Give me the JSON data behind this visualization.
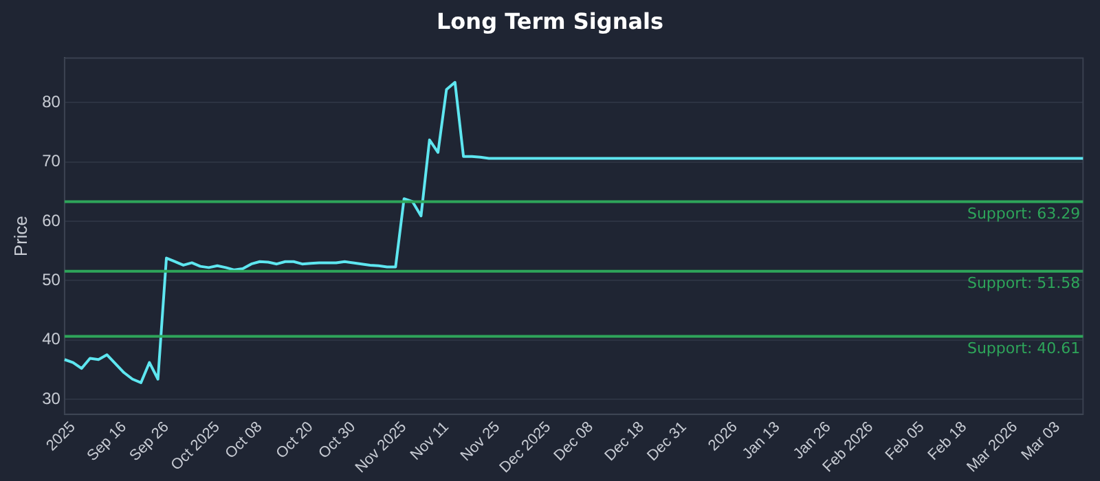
{
  "chart_data": {
    "type": "line",
    "title": "Long Term Signals",
    "ylabel": "Price",
    "categories": [
      null,
      "2025",
      null,
      null,
      null,
      null,
      null,
      "Sep 16",
      null,
      null,
      null,
      null,
      "Sep 26",
      null,
      null,
      null,
      null,
      null,
      "Oct 2025",
      null,
      null,
      null,
      null,
      "Oct 08",
      null,
      null,
      null,
      null,
      null,
      "Oct 20",
      null,
      null,
      null,
      null,
      "Oct 30",
      null,
      null,
      null,
      null,
      null,
      "Nov 2025",
      null,
      null,
      null,
      null,
      "Nov 11",
      null,
      null,
      null,
      null,
      null,
      "Nov 25",
      null,
      null,
      null,
      null,
      null,
      "Dec 2025",
      null,
      null,
      null,
      null,
      "Dec 08",
      null,
      null,
      null,
      null,
      null,
      "Dec 18",
      null,
      null,
      null,
      null,
      "Dec 31",
      null,
      null,
      null,
      null,
      null,
      "2026",
      null,
      null,
      null,
      null,
      "Jan 13",
      null,
      null,
      null,
      null,
      null,
      "Jan 26",
      null,
      null,
      null,
      null,
      "Feb 2026",
      null,
      null,
      null,
      null,
      null,
      "Feb 05",
      null,
      null,
      null,
      null,
      "Feb 18",
      null,
      null,
      null,
      null,
      null,
      "Mar 2026",
      null,
      null,
      null,
      null,
      "Mar 03",
      null,
      null,
      null
    ],
    "series": [
      {
        "color": "#5ee6f0",
        "values": [
          36.7,
          36.2,
          35.2,
          36.9,
          36.7,
          37.5,
          36.0,
          34.5,
          33.4,
          32.8,
          36.2,
          33.4,
          53.8,
          53.2,
          52.6,
          53.0,
          52.4,
          52.2,
          52.5,
          52.2,
          51.8,
          52.0,
          52.8,
          53.2,
          53.1,
          52.8,
          53.2,
          53.2,
          52.8,
          52.9,
          53.0,
          53.0,
          53.0,
          53.2,
          53.0,
          52.8,
          52.6,
          52.5,
          52.3,
          52.3,
          63.8,
          63.3,
          60.9,
          73.7,
          71.6,
          82.2,
          83.4,
          70.9,
          70.9,
          70.8,
          70.6,
          70.6,
          70.6,
          70.6,
          70.6,
          70.6,
          70.6,
          70.6,
          70.6,
          70.6,
          70.6,
          70.6,
          70.6,
          70.6,
          70.6,
          70.6,
          70.6,
          70.6,
          70.6,
          70.6,
          70.6,
          70.6,
          70.6,
          70.6,
          70.6,
          70.6,
          70.6,
          70.6,
          70.6,
          70.6,
          70.6,
          70.6,
          70.6,
          70.6,
          70.6,
          70.6,
          70.6,
          70.6,
          70.6,
          70.6,
          70.6,
          70.6,
          70.6,
          70.6,
          70.6,
          70.6,
          70.6,
          70.6,
          70.6,
          70.6,
          70.6,
          70.6,
          70.6,
          70.6,
          70.6,
          70.6,
          70.6,
          70.6,
          70.6,
          70.6,
          70.6,
          70.6,
          70.6,
          70.6,
          70.6,
          70.6,
          70.6,
          70.6,
          70.6,
          70.6,
          70.6
        ]
      }
    ],
    "ylim": [
      27.5,
      87.5
    ],
    "yticks": [
      30,
      40,
      50,
      60,
      70,
      80
    ],
    "grid": "y",
    "legend": false,
    "marker": "none",
    "line_style": "solid",
    "ref_lines": [
      {
        "axis": "y",
        "value": 63.29,
        "label": "Support: 63.29",
        "color": "#2ea55a"
      },
      {
        "axis": "y",
        "value": 51.58,
        "label": "Support: 51.58",
        "color": "#2ea55a"
      },
      {
        "axis": "y",
        "value": 40.61,
        "label": "Support: 40.61",
        "color": "#2ea55a"
      }
    ]
  }
}
